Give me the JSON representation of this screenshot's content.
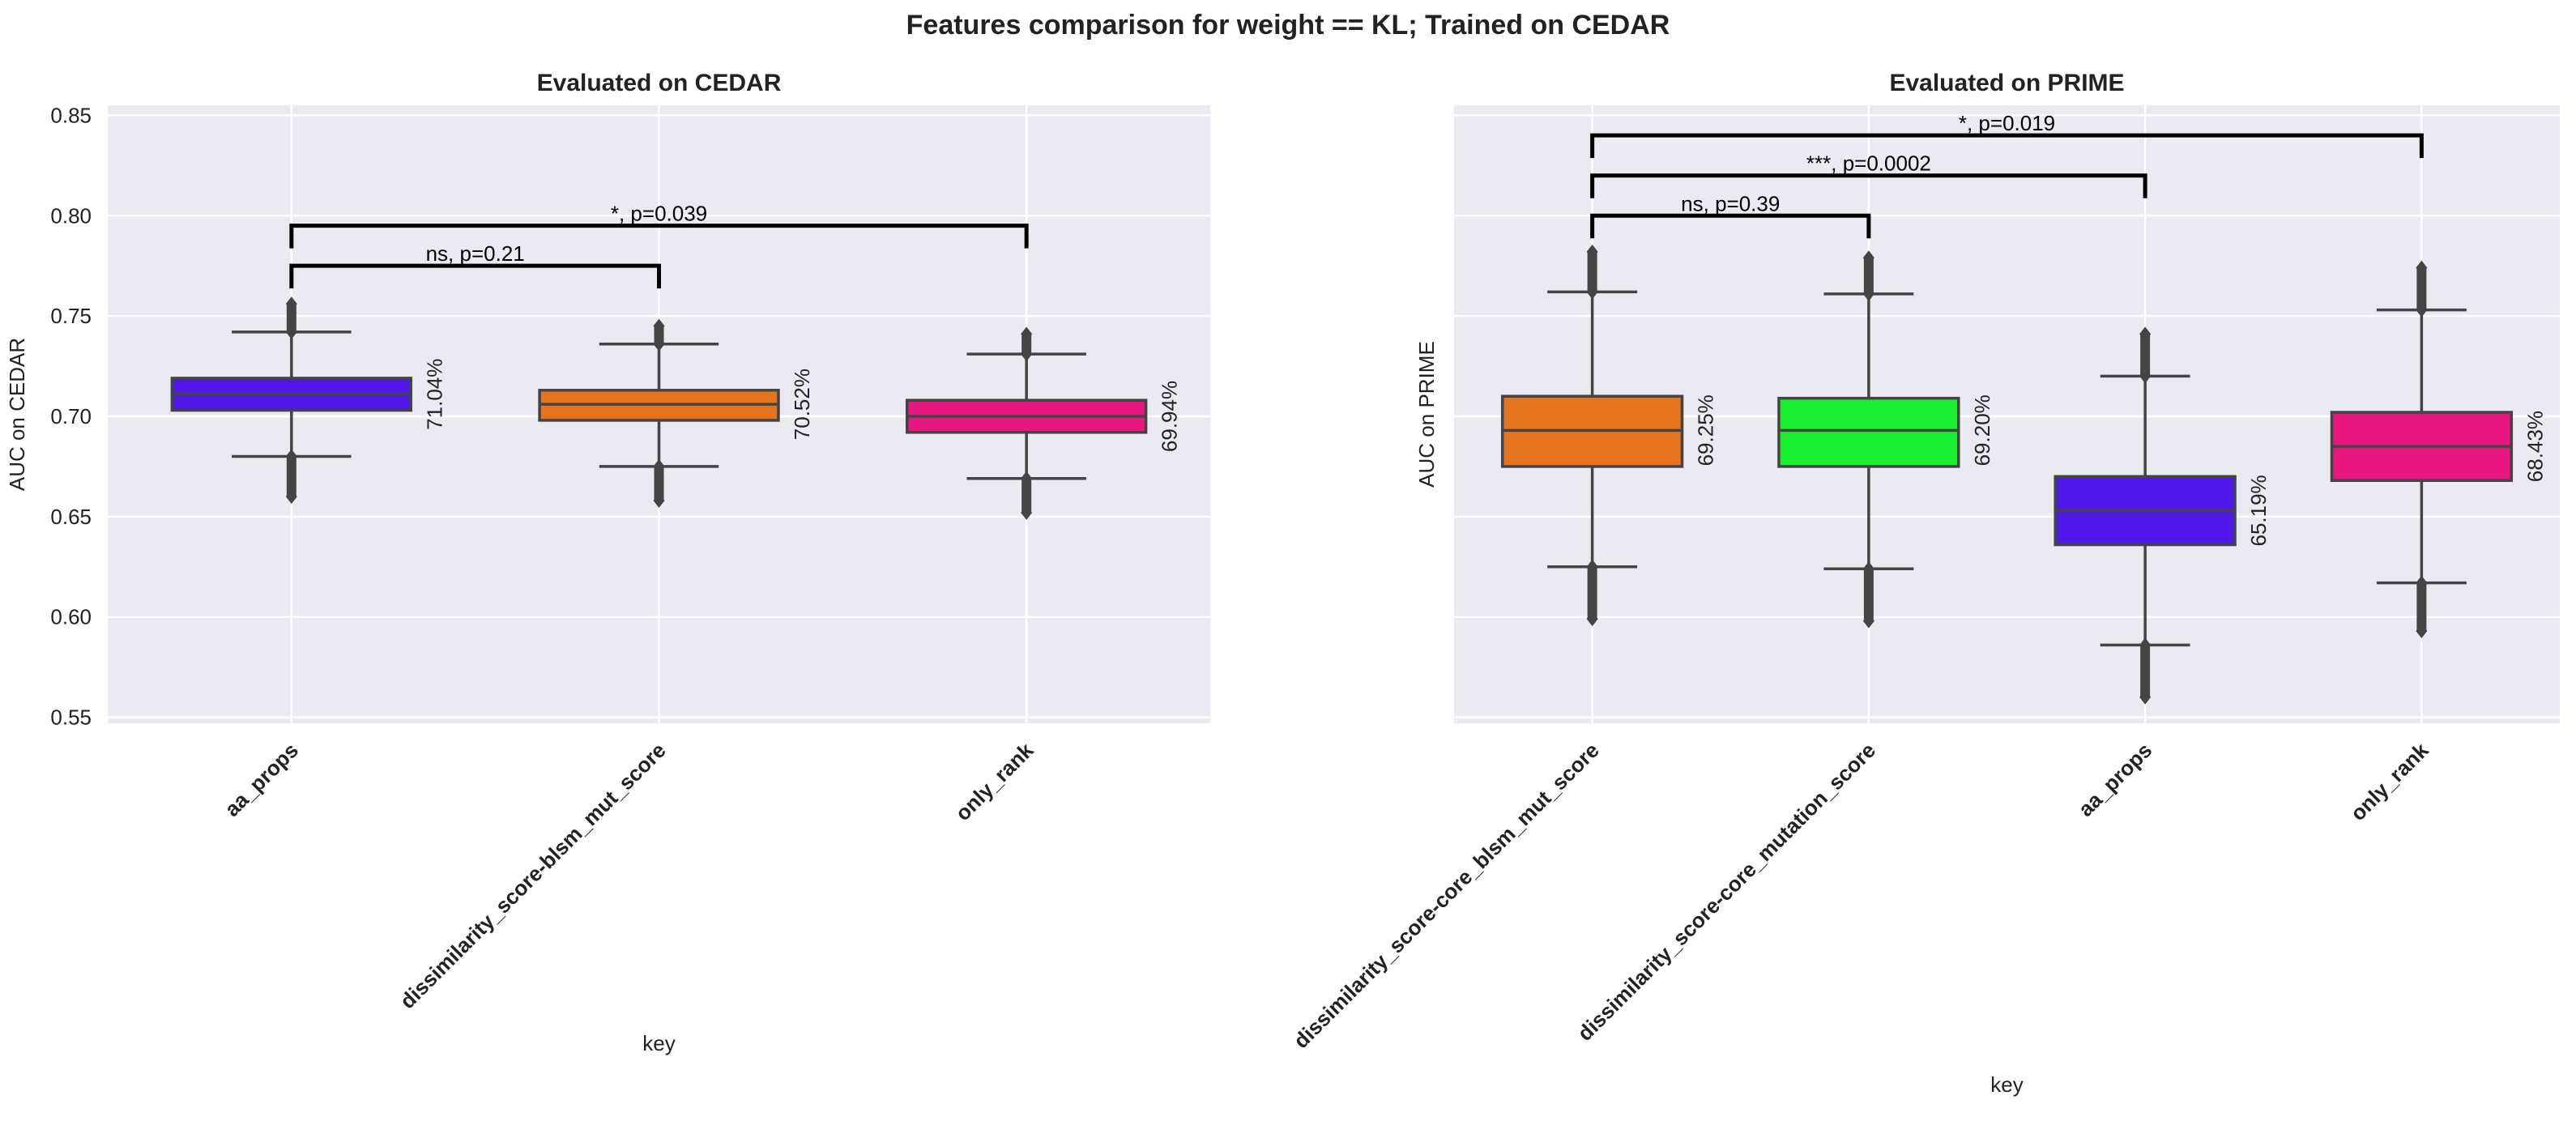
{
  "figure": {
    "suptitle": "Features comparison for weight == KL; Trained on CEDAR"
  },
  "chart_data": [
    {
      "type": "box",
      "title": "Evaluated on CEDAR",
      "xlabel": "key",
      "ylabel": "AUC on CEDAR",
      "ylim": [
        0.547,
        0.855
      ],
      "yticks": [
        "0.55",
        "0.60",
        "0.65",
        "0.70",
        "0.75",
        "0.80",
        "0.85"
      ],
      "grid": true,
      "categories": [
        "aa_props",
        "dissimilarity_score-blsm_mut_score",
        "only_rank"
      ],
      "boxes": [
        {
          "name": "aa_props",
          "color": "#4f18e8",
          "whislo": 0.68,
          "q1": 0.703,
          "med": 0.711,
          "q3": 0.719,
          "whishi": 0.742,
          "flier_lo": [
            0.66,
            0.68
          ],
          "flier_hi": [
            0.742,
            0.756
          ],
          "label": "71.04%"
        },
        {
          "name": "dissimilarity_score-blsm_mut_score",
          "color": "#e6741f",
          "whislo": 0.675,
          "q1": 0.698,
          "med": 0.706,
          "q3": 0.713,
          "whishi": 0.736,
          "flier_lo": [
            0.658,
            0.675
          ],
          "flier_hi": [
            0.736,
            0.745
          ],
          "label": "70.52%"
        },
        {
          "name": "only_rank",
          "color": "#e8167f",
          "whislo": 0.669,
          "q1": 0.692,
          "med": 0.7,
          "q3": 0.708,
          "whishi": 0.731,
          "flier_lo": [
            0.652,
            0.669
          ],
          "flier_hi": [
            0.731,
            0.741
          ],
          "label": "69.94%"
        }
      ],
      "annotations": [
        {
          "from": 0,
          "to": 1,
          "y": 0.775,
          "text": "ns, p=0.21"
        },
        {
          "from": 0,
          "to": 2,
          "y": 0.795,
          "text": "*, p=0.039"
        }
      ]
    },
    {
      "type": "box",
      "title": "Evaluated on PRIME",
      "xlabel": "key",
      "ylabel": "AUC on PRIME",
      "ylim": [
        0.547,
        0.855
      ],
      "yticks": [],
      "grid": true,
      "categories": [
        "dissimilarity_score-core_blsm_mut_score",
        "dissimilarity_score-core_mutation_score",
        "aa_props",
        "only_rank"
      ],
      "boxes": [
        {
          "name": "dissimilarity_score-core_blsm_mut_score",
          "color": "#e6741f",
          "whislo": 0.625,
          "q1": 0.675,
          "med": 0.693,
          "q3": 0.71,
          "whishi": 0.762,
          "flier_lo": [
            0.599,
            0.625
          ],
          "flier_hi": [
            0.762,
            0.782
          ],
          "label": "69.25%"
        },
        {
          "name": "dissimilarity_score-core_mutation_score",
          "color": "#18f02f",
          "whislo": 0.624,
          "q1": 0.675,
          "med": 0.693,
          "q3": 0.709,
          "whishi": 0.761,
          "flier_lo": [
            0.598,
            0.624
          ],
          "flier_hi": [
            0.761,
            0.779
          ],
          "label": "69.20%"
        },
        {
          "name": "aa_props",
          "color": "#4f18e8",
          "whislo": 0.586,
          "q1": 0.636,
          "med": 0.653,
          "q3": 0.67,
          "whishi": 0.72,
          "flier_lo": [
            0.56,
            0.586
          ],
          "flier_hi": [
            0.72,
            0.741
          ],
          "label": "65.19%"
        },
        {
          "name": "only_rank",
          "color": "#e8167f",
          "whislo": 0.617,
          "q1": 0.668,
          "med": 0.685,
          "q3": 0.702,
          "whishi": 0.753,
          "flier_lo": [
            0.593,
            0.617
          ],
          "flier_hi": [
            0.753,
            0.774
          ],
          "label": "68.43%"
        }
      ],
      "annotations": [
        {
          "from": 0,
          "to": 1,
          "y": 0.8,
          "text": "ns, p=0.39"
        },
        {
          "from": 0,
          "to": 2,
          "y": 0.82,
          "text": "***, p=0.0002"
        },
        {
          "from": 0,
          "to": 3,
          "y": 0.84,
          "text": "*, p=0.019"
        }
      ]
    }
  ]
}
